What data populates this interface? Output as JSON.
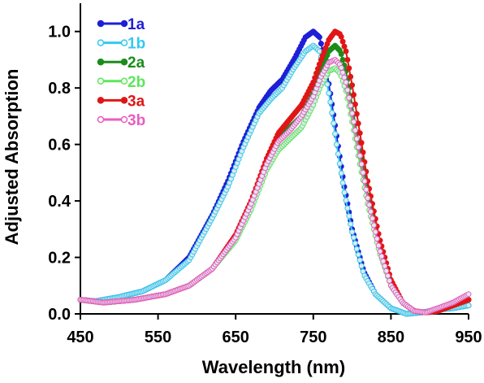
{
  "chart_data": {
    "type": "line",
    "xlabel": "Wavelength (nm)",
    "ylabel": "Adjusted Absorption",
    "xlim": [
      450,
      950
    ],
    "ylim": [
      0,
      1.1
    ],
    "xticks": [
      "450",
      "550",
      "650",
      "750",
      "850",
      "950"
    ],
    "yticks": [
      "0.0",
      "0.2",
      "0.4",
      "0.6",
      "0.8",
      "1.0"
    ],
    "grid": false,
    "legend_position": "top-left",
    "series": [
      {
        "name": "1a",
        "color": "#1f1fd6",
        "marker": "filled",
        "x": [
          450,
          470,
          500,
          530,
          560,
          590,
          620,
          640,
          660,
          680,
          695,
          710,
          725,
          740,
          750,
          758,
          765,
          772,
          780,
          790,
          800,
          815,
          830,
          850,
          870,
          890,
          910,
          930,
          950
        ],
        "y": [
          0.05,
          0.045,
          0.06,
          0.08,
          0.12,
          0.2,
          0.35,
          0.47,
          0.61,
          0.73,
          0.79,
          0.83,
          0.9,
          0.98,
          1.0,
          0.98,
          0.9,
          0.78,
          0.63,
          0.45,
          0.3,
          0.15,
          0.07,
          0.02,
          0.0,
          0.005,
          0.015,
          0.02,
          0.03
        ]
      },
      {
        "name": "1b",
        "color": "#33c9ee",
        "marker": "open",
        "x": [
          450,
          470,
          500,
          530,
          560,
          590,
          620,
          640,
          660,
          680,
          695,
          710,
          725,
          740,
          750,
          758,
          765,
          772,
          780,
          790,
          800,
          815,
          830,
          850,
          870,
          890,
          910,
          930,
          950
        ],
        "y": [
          0.05,
          0.045,
          0.06,
          0.08,
          0.12,
          0.19,
          0.34,
          0.45,
          0.59,
          0.71,
          0.76,
          0.8,
          0.87,
          0.93,
          0.95,
          0.93,
          0.86,
          0.75,
          0.6,
          0.43,
          0.29,
          0.14,
          0.07,
          0.02,
          0.0,
          0.005,
          0.015,
          0.02,
          0.03
        ]
      },
      {
        "name": "2a",
        "color": "#1a8c1a",
        "marker": "filled",
        "x": [
          450,
          480,
          520,
          560,
          590,
          620,
          650,
          670,
          690,
          705,
          720,
          735,
          750,
          760,
          770,
          778,
          785,
          792,
          800,
          810,
          820,
          835,
          850,
          865,
          880,
          895,
          910,
          930,
          950
        ],
        "y": [
          0.05,
          0.04,
          0.05,
          0.07,
          0.1,
          0.16,
          0.27,
          0.39,
          0.54,
          0.62,
          0.66,
          0.7,
          0.78,
          0.86,
          0.93,
          0.95,
          0.93,
          0.86,
          0.74,
          0.58,
          0.42,
          0.24,
          0.11,
          0.04,
          0.01,
          0.005,
          0.01,
          0.03,
          0.05
        ]
      },
      {
        "name": "2b",
        "color": "#5ce65c",
        "marker": "open",
        "x": [
          450,
          480,
          520,
          560,
          590,
          620,
          650,
          670,
          690,
          705,
          720,
          735,
          750,
          760,
          770,
          778,
          785,
          792,
          800,
          810,
          820,
          835,
          850,
          865,
          880,
          895,
          910,
          930,
          950
        ],
        "y": [
          0.05,
          0.04,
          0.05,
          0.07,
          0.1,
          0.16,
          0.26,
          0.37,
          0.51,
          0.58,
          0.62,
          0.66,
          0.74,
          0.81,
          0.86,
          0.87,
          0.85,
          0.79,
          0.68,
          0.53,
          0.39,
          0.22,
          0.1,
          0.04,
          0.01,
          0.005,
          0.01,
          0.03,
          0.05
        ]
      },
      {
        "name": "3a",
        "color": "#e01616",
        "marker": "filled",
        "x": [
          450,
          480,
          520,
          560,
          590,
          620,
          650,
          670,
          690,
          705,
          720,
          735,
          750,
          760,
          770,
          778,
          785,
          792,
          800,
          810,
          820,
          835,
          850,
          865,
          880,
          895,
          910,
          930,
          950
        ],
        "y": [
          0.05,
          0.04,
          0.05,
          0.07,
          0.1,
          0.16,
          0.28,
          0.4,
          0.55,
          0.64,
          0.69,
          0.74,
          0.82,
          0.9,
          0.97,
          1.0,
          0.99,
          0.93,
          0.81,
          0.64,
          0.47,
          0.27,
          0.12,
          0.04,
          0.01,
          0.005,
          0.01,
          0.03,
          0.05
        ]
      },
      {
        "name": "3b",
        "color": "#e85ec0",
        "marker": "open",
        "x": [
          450,
          480,
          520,
          560,
          590,
          620,
          650,
          670,
          690,
          705,
          720,
          735,
          750,
          760,
          770,
          778,
          785,
          792,
          800,
          810,
          820,
          835,
          850,
          865,
          880,
          895,
          910,
          930,
          950
        ],
        "y": [
          0.05,
          0.04,
          0.05,
          0.07,
          0.1,
          0.16,
          0.27,
          0.39,
          0.53,
          0.61,
          0.65,
          0.7,
          0.77,
          0.84,
          0.89,
          0.9,
          0.88,
          0.82,
          0.71,
          0.56,
          0.41,
          0.23,
          0.1,
          0.04,
          0.01,
          0.005,
          0.02,
          0.04,
          0.07
        ]
      }
    ]
  }
}
